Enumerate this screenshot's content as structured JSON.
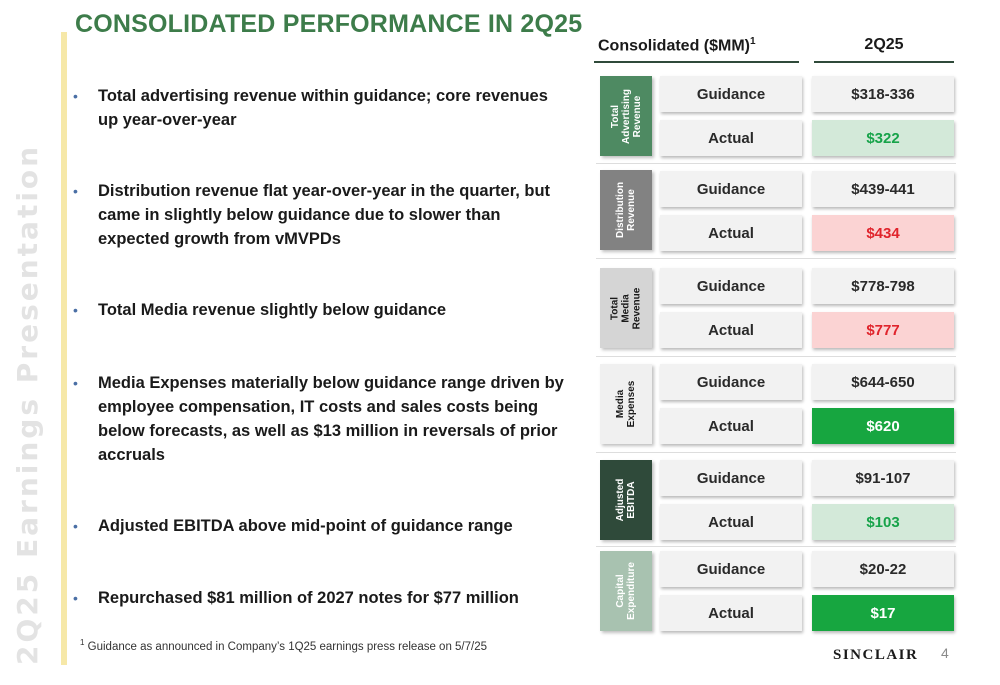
{
  "side_label": "2Q25 Earnings Presentation",
  "title": "CONSOLIDATED PERFORMANCE IN 2Q25",
  "bullets": [
    "Total advertising revenue within guidance; core revenues up year-over-year",
    "Distribution revenue flat year-over-year in the quarter, but came in slightly below guidance due to slower than expected growth from vMVPDs",
    "Total Media revenue slightly below guidance",
    "Media Expenses materially below guidance range driven by employee compensation, IT costs and sales costs being below forecasts, as well as $13 million in reversals of prior accruals",
    "Adjusted EBITDA above mid-point of guidance range",
    "Repurchased $81 million of 2027 notes for $77 million"
  ],
  "bullet_marker": "•",
  "footnote": {
    "marker": "1",
    "text": "Guidance as announced in Company’s 1Q25 earnings press release on 5/7/25"
  },
  "table": {
    "header_left": "Consolidated ($MM)",
    "header_left_sup": "1",
    "header_right": "2Q25",
    "categories": [
      {
        "name": "Total Advertising Revenue",
        "bg": "#4e8a62",
        "fg": "#ffffff",
        "guidance_label": "Guidance",
        "guidance_value": "$318-336",
        "guidance_bg": "#f2f2f2",
        "guidance_fg": "#2a2a2a",
        "actual_label": "Actual",
        "actual_value": "$322",
        "actual_bg": "#d3e9d9",
        "actual_fg": "#17a34a"
      },
      {
        "name": "Distribution Revenue",
        "bg": "#828282",
        "fg": "#ffffff",
        "guidance_label": "Guidance",
        "guidance_value": "$439-441",
        "guidance_bg": "#f2f2f2",
        "guidance_fg": "#2a2a2a",
        "actual_label": "Actual",
        "actual_value": "$434",
        "actual_bg": "#fbd3d3",
        "actual_fg": "#e0242c"
      },
      {
        "name": "Total Media Revenue",
        "bg": "#d5d5d5",
        "fg": "#1a1a1a",
        "guidance_label": "Guidance",
        "guidance_value": "$778-798",
        "guidance_bg": "#f2f2f2",
        "guidance_fg": "#2a2a2a",
        "actual_label": "Actual",
        "actual_value": "$777",
        "actual_bg": "#fbd3d3",
        "actual_fg": "#e0242c"
      },
      {
        "name": "Media Expenses",
        "bg": "#f0f0f0",
        "fg": "#1a1a1a",
        "guidance_label": "Guidance",
        "guidance_value": "$644-650",
        "guidance_bg": "#f2f2f2",
        "guidance_fg": "#2a2a2a",
        "actual_label": "Actual",
        "actual_value": "$620",
        "actual_bg": "#17a640",
        "actual_fg": "#ffffff"
      },
      {
        "name": "Adjusted EBITDA",
        "bg": "#2f4a3a",
        "fg": "#ffffff",
        "guidance_label": "Guidance",
        "guidance_value": "$91-107",
        "guidance_bg": "#f2f2f2",
        "guidance_fg": "#2a2a2a",
        "actual_label": "Actual",
        "actual_value": "$103",
        "actual_bg": "#d3e9d9",
        "actual_fg": "#17a34a"
      },
      {
        "name": "Capital Expenditure",
        "bg": "#a8c2b0",
        "fg": "#ffffff",
        "guidance_label": "Guidance",
        "guidance_value": "$20-22",
        "guidance_bg": "#f2f2f2",
        "guidance_fg": "#2a2a2a",
        "actual_label": "Actual",
        "actual_value": "$17",
        "actual_bg": "#17a640",
        "actual_fg": "#ffffff"
      }
    ]
  },
  "logo": "SINCLAIR",
  "page_number": "4",
  "colors": {
    "title": "#3d7c4a",
    "accent_bar": "#f6e8a8",
    "side_label": "#e3e3e3",
    "bullet_marker": "#4a6fa5"
  }
}
